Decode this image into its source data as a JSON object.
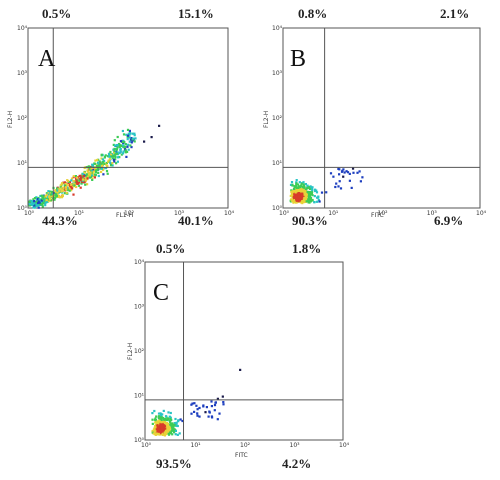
{
  "chart_data": [
    {
      "type": "scatter",
      "panel_label": "A",
      "xlabel": "FL1-H",
      "ylabel": "FL2-H",
      "x_ticks": [
        "10⁰",
        "10¹",
        "10²",
        "10³",
        "10⁴"
      ],
      "y_ticks": [
        "10⁰",
        "10¹",
        "10²",
        "10³",
        "10⁴"
      ],
      "xlim": [
        1,
        10000
      ],
      "ylim": [
        1,
        10000
      ],
      "scale": "log",
      "quadrant_gate": {
        "x": 3.2,
        "y": 8
      },
      "quadrants": {
        "upper_left": "0.5%",
        "upper_right": "15.1%",
        "lower_left": "44.3%",
        "lower_right": "40.1%"
      },
      "distribution": "diagonal",
      "points": 650
    },
    {
      "type": "scatter",
      "panel_label": "B",
      "xlabel": "FITC",
      "ylabel": "FL2-H",
      "x_ticks": [
        "10⁰",
        "10¹",
        "10²",
        "10³",
        "10⁴"
      ],
      "y_ticks": [
        "10⁰",
        "10¹",
        "10²",
        "10³",
        "10⁴"
      ],
      "xlim": [
        1,
        10000
      ],
      "ylim": [
        1,
        10000
      ],
      "scale": "log",
      "quadrant_gate": {
        "x": 7,
        "y": 8
      },
      "quadrants": {
        "upper_left": "0.8%",
        "upper_right": "2.1%",
        "lower_left": "90.3%",
        "lower_right": "6.9%"
      },
      "distribution": "cluster",
      "points": 450
    },
    {
      "type": "scatter",
      "panel_label": "C",
      "xlabel": "FITC",
      "ylabel": "FL2-H",
      "x_ticks": [
        "10⁰",
        "10¹",
        "10²",
        "10³",
        "10⁴"
      ],
      "y_ticks": [
        "10⁰",
        "10¹",
        "10²",
        "10³",
        "10⁴"
      ],
      "xlim": [
        1,
        10000
      ],
      "ylim": [
        1,
        10000
      ],
      "scale": "log",
      "quadrant_gate": {
        "x": 6,
        "y": 8
      },
      "quadrants": {
        "upper_left": "0.5%",
        "upper_right": "1.8%",
        "lower_left": "93.5%",
        "lower_right": "4.2%"
      },
      "distribution": "cluster",
      "points": 450
    }
  ],
  "colors": {
    "low": "#1e3fbf",
    "mid": "#28c4c4",
    "high": "#3ccc55",
    "peak": "#e8d238",
    "hot": "#d83a2a"
  }
}
